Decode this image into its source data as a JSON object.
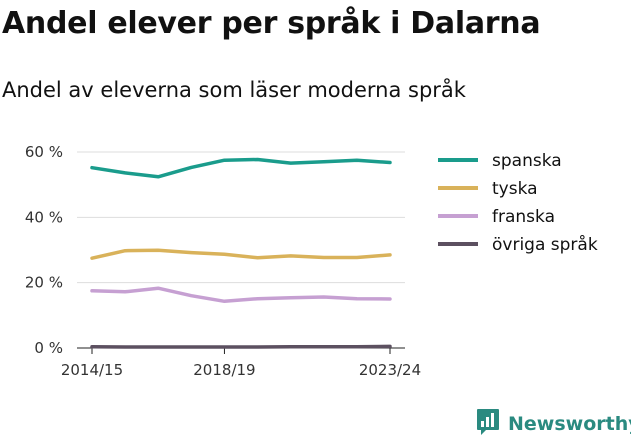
{
  "header": {
    "title": "Andel elever per språk i Dalarna",
    "subtitle": "Andel av eleverna som läser moderna språk"
  },
  "brand": {
    "name": "Newsworthy",
    "icon": "bar-chart-icon",
    "color": "#2a8a80"
  },
  "chart_data": {
    "type": "line",
    "title": "Andel elever per språk i Dalarna",
    "subtitle": "Andel av eleverna som läser moderna språk",
    "xlabel": "",
    "ylabel": "",
    "x": [
      "2014/15",
      "2015/16",
      "2016/17",
      "2017/18",
      "2018/19",
      "2019/20",
      "2020/21",
      "2021/22",
      "2022/23",
      "2023/24"
    ],
    "x_tick_labels": [
      "2014/15",
      "2018/19",
      "2023/24"
    ],
    "ylim": [
      0,
      60
    ],
    "y_ticks": [
      0,
      20,
      40,
      60
    ],
    "y_tick_labels": [
      "0 %",
      "20 %",
      "40 %",
      "60 %"
    ],
    "grid": true,
    "legend_position": "right",
    "series": [
      {
        "name": "spanska",
        "color": "#1a9c8c",
        "values": [
          55.2,
          53.6,
          52.4,
          55.3,
          57.5,
          57.7,
          56.6,
          57.0,
          57.5,
          56.8
        ]
      },
      {
        "name": "tyska",
        "color": "#d9b25a",
        "values": [
          27.5,
          29.8,
          29.9,
          29.2,
          28.7,
          27.6,
          28.2,
          27.7,
          27.7,
          28.5
        ]
      },
      {
        "name": "franska",
        "color": "#c6a0d2",
        "values": [
          17.5,
          17.2,
          18.3,
          16.0,
          14.3,
          15.1,
          15.4,
          15.6,
          15.1,
          15.0
        ]
      },
      {
        "name": "övriga språk",
        "color": "#5c5060",
        "values": [
          0.4,
          0.3,
          0.3,
          0.3,
          0.3,
          0.3,
          0.4,
          0.4,
          0.4,
          0.5
        ]
      }
    ]
  }
}
